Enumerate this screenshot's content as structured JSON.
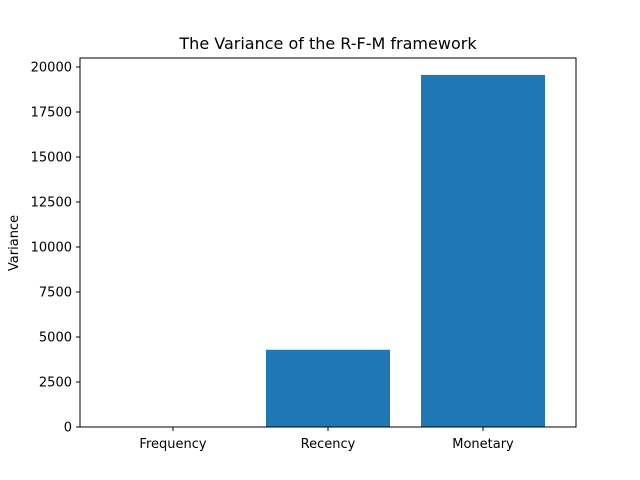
{
  "chart_data": {
    "type": "bar",
    "title": "The Variance of the R-F-M framework",
    "xlabel": "",
    "ylabel": "Variance",
    "categories": [
      "Frequency",
      "Recency",
      "Monetary"
    ],
    "values": [
      10,
      4290,
      19560
    ],
    "ylim": [
      0,
      20500
    ],
    "yticks": [
      0,
      2500,
      5000,
      7500,
      10000,
      12500,
      15000,
      17500,
      20000
    ],
    "ytick_labels": [
      "0",
      "2500",
      "5000",
      "7500",
      "10000",
      "12500",
      "15000",
      "17500",
      "20000"
    ],
    "bar_color": "#1f77b4",
    "grid": false,
    "legend": "none"
  }
}
